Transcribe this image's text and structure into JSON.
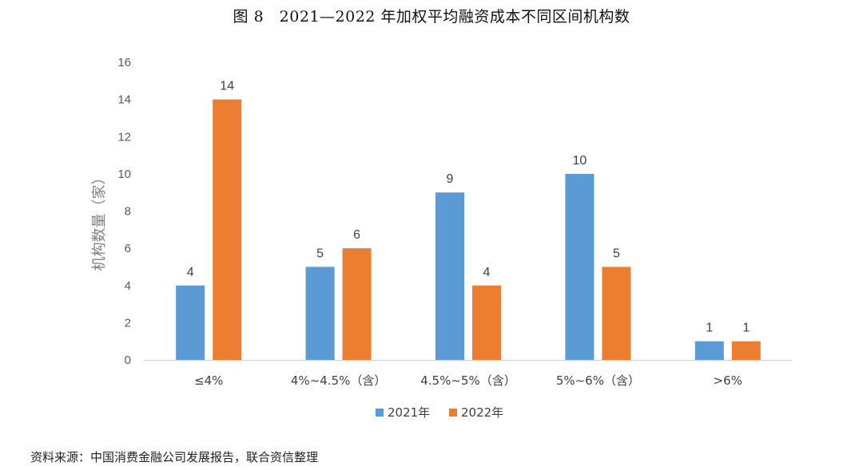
{
  "chart_data": {
    "type": "bar",
    "title": "图 8　2021—2022 年加权平均融资成本不同区间机构数",
    "categories": [
      "≤4%",
      "4%~4.5%（含）",
      "4.5%~5%（含）",
      "5%~6%（含）",
      ">6%"
    ],
    "series": [
      {
        "name": "2021年",
        "values": [
          4,
          5,
          9,
          10,
          1
        ],
        "color": "#5b9bd5"
      },
      {
        "name": "2022年",
        "values": [
          14,
          6,
          4,
          5,
          1
        ],
        "color": "#ed7d31"
      }
    ],
    "xlabel": "",
    "ylabel": "机构数量（家）",
    "ylim": [
      0,
      16
    ],
    "yticks": [
      0,
      2,
      4,
      6,
      8,
      10,
      12,
      14,
      16
    ],
    "grid": false,
    "legend": "bottom",
    "data_labels": true
  },
  "source": "资料来源：中国消费金融公司发展报告，联合资信整理"
}
